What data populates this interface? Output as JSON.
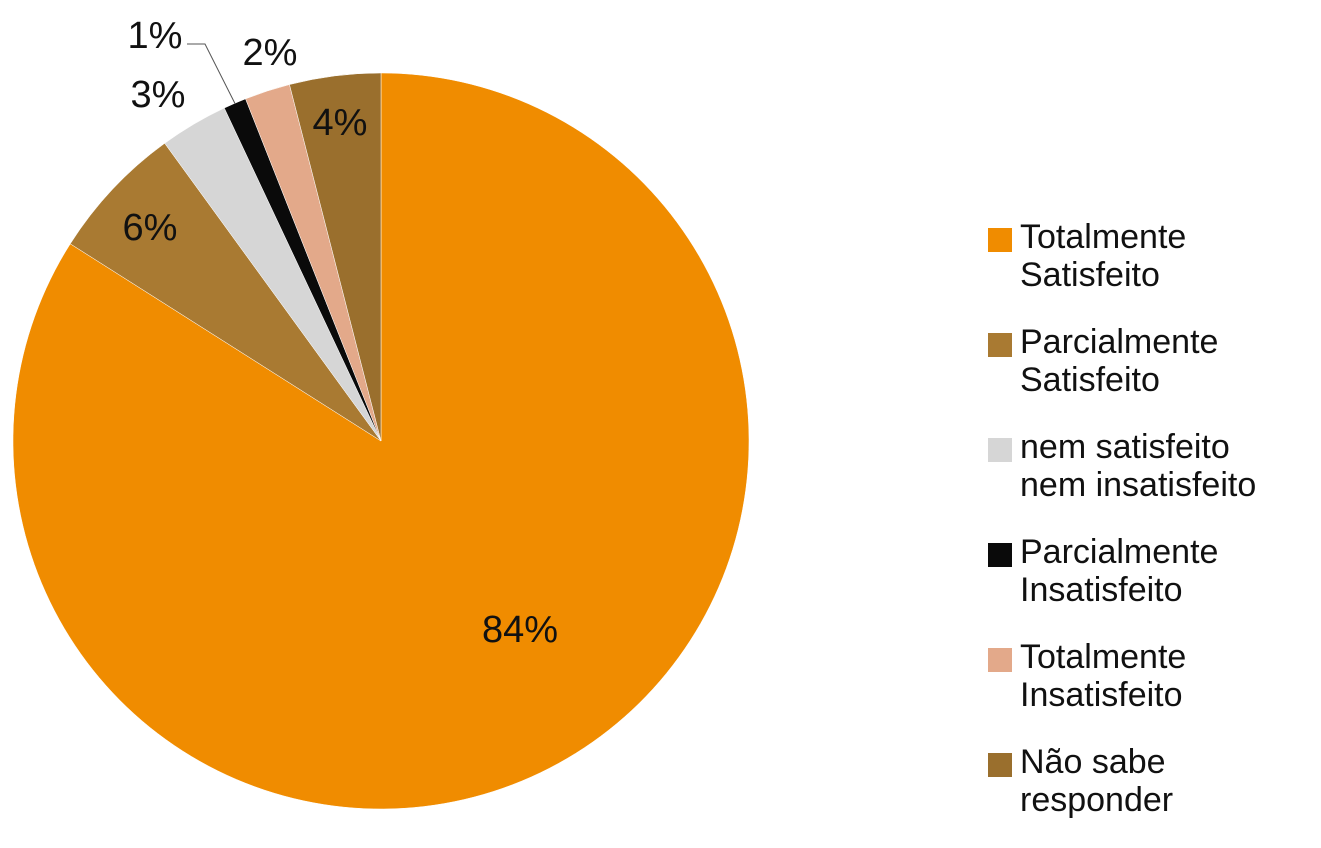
{
  "chart_data": {
    "type": "pie",
    "categories": [
      "Totalmente Satisfeito",
      "Parcialmente Satisfeito",
      "nem satisfeito nem insatisfeito",
      "Parcialmente Insatisfeito",
      "Totalmente Insatisfeito",
      "Não sabe responder"
    ],
    "values": [
      84,
      6,
      3,
      1,
      2,
      4
    ],
    "value_labels": [
      "84%",
      "6%",
      "3%",
      "1%",
      "2%",
      "4%"
    ],
    "colors": [
      "#f08c00",
      "#a97a32",
      "#d6d6d6",
      "#0a0a0a",
      "#e3a98a",
      "#9a6f2d"
    ],
    "legend": "right"
  }
}
